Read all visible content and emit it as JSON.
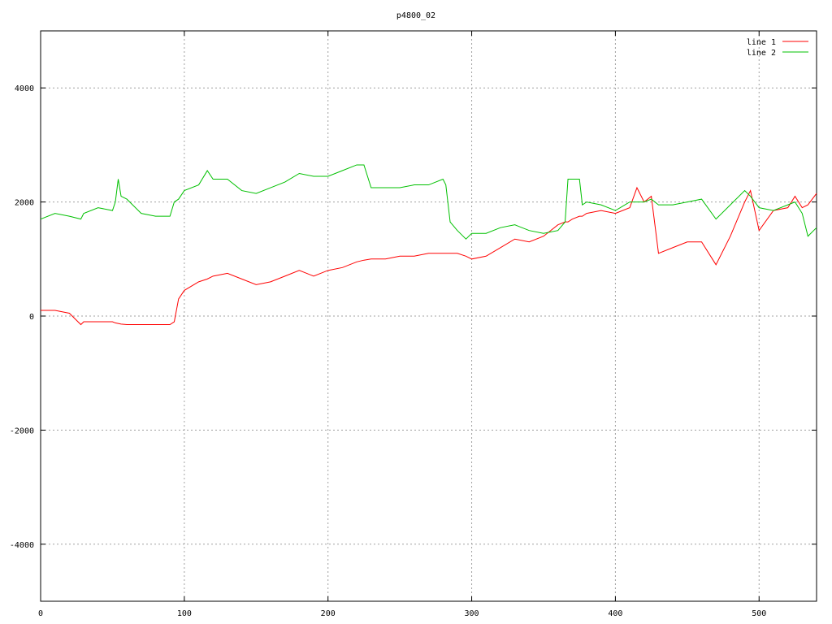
{
  "chart_data": {
    "type": "line",
    "title": "p4800_02",
    "x": [
      0,
      10,
      20,
      28,
      30,
      40,
      50,
      52,
      54,
      56,
      60,
      70,
      80,
      90,
      93,
      96,
      100,
      110,
      116,
      120,
      130,
      140,
      150,
      160,
      170,
      180,
      190,
      200,
      210,
      220,
      225,
      230,
      240,
      250,
      260,
      270,
      280,
      282,
      285,
      290,
      296,
      300,
      310,
      320,
      330,
      340,
      350,
      360,
      365,
      367,
      370,
      375,
      377,
      380,
      390,
      400,
      410,
      415,
      420,
      425,
      430,
      440,
      450,
      460,
      470,
      480,
      490,
      494,
      500,
      510,
      520,
      525,
      530,
      534,
      540
    ],
    "series": [
      {
        "name": "line 1",
        "color": "#ff0000",
        "values": [
          100,
          100,
          50,
          -150,
          -100,
          -100,
          -100,
          -120,
          -130,
          -140,
          -150,
          -150,
          -150,
          -150,
          -100,
          300,
          450,
          600,
          650,
          700,
          750,
          650,
          550,
          600,
          700,
          800,
          700,
          800,
          850,
          950,
          980,
          1000,
          1000,
          1050,
          1050,
          1100,
          1100,
          1100,
          1100,
          1100,
          1050,
          1000,
          1050,
          1200,
          1350,
          1300,
          1400,
          1600,
          1650,
          1650,
          1700,
          1750,
          1750,
          1800,
          1850,
          1800,
          1900,
          2250,
          2000,
          2100,
          1100,
          1200,
          1300,
          1300,
          900,
          1400,
          2000,
          2200,
          1500,
          1850,
          1900,
          2100,
          1900,
          1950,
          2150
        ]
      },
      {
        "name": "line 2",
        "color": "#00c000",
        "values": [
          1700,
          1800,
          1750,
          1700,
          1800,
          1900,
          1850,
          2000,
          2400,
          2100,
          2050,
          1800,
          1750,
          1750,
          2000,
          2050,
          2200,
          2300,
          2550,
          2400,
          2400,
          2200,
          2150,
          2250,
          2350,
          2500,
          2450,
          2450,
          2550,
          2650,
          2650,
          2250,
          2250,
          2250,
          2300,
          2300,
          2400,
          2300,
          1650,
          1500,
          1350,
          1450,
          1450,
          1550,
          1600,
          1500,
          1450,
          1500,
          1650,
          2400,
          2400,
          2400,
          1950,
          2000,
          1950,
          1850,
          2000,
          2000,
          2000,
          2050,
          1950,
          1950,
          2000,
          2050,
          1700,
          1950,
          2200,
          2100,
          1900,
          1850,
          1950,
          2000,
          1800,
          1400,
          1550
        ]
      }
    ],
    "xlim": [
      0,
      540
    ],
    "ylim": [
      -5000,
      5000
    ],
    "xticks": [
      0,
      100,
      200,
      300,
      400,
      500
    ],
    "yticks": [
      -4000,
      -2000,
      0,
      2000,
      4000
    ],
    "grid": true,
    "legend": "top-right"
  }
}
